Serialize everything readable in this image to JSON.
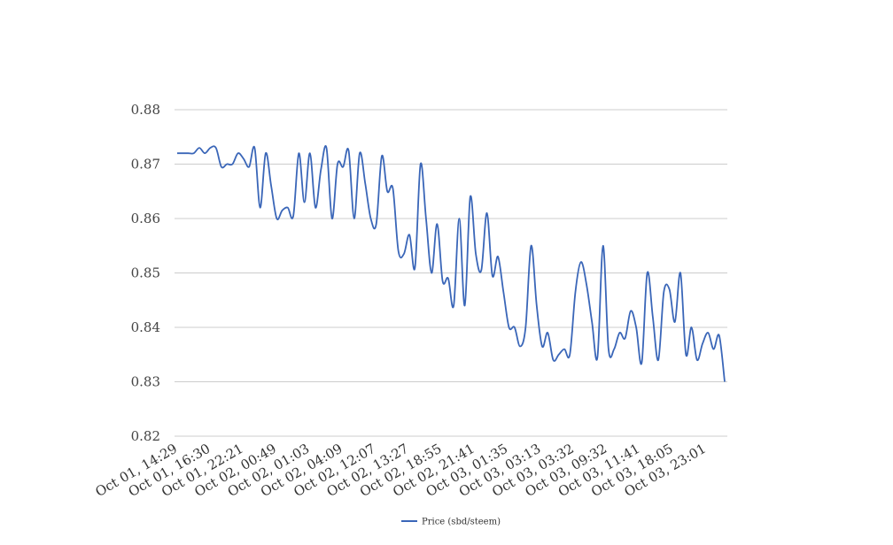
{
  "chart_data": {
    "type": "line",
    "title": "",
    "xlabel": "",
    "ylabel": "",
    "ylim": [
      0.82,
      0.88
    ],
    "yticks": [
      "0.82",
      "0.83",
      "0.84",
      "0.85",
      "0.86",
      "0.87",
      "0.88"
    ],
    "grid": true,
    "legend_position": "bottom-center",
    "x_tick_labels": [
      "Oct 01, 14:29",
      "Oct 01, 16:30",
      "Oct 01, 22:21",
      "Oct 02, 00:49",
      "Oct 02, 01:03",
      "Oct 02, 04:09",
      "Oct 02, 12:07",
      "Oct 02, 13:27",
      "Oct 02, 18:55",
      "Oct 02, 21:41",
      "Oct 03, 01:35",
      "Oct 03, 03:13",
      "Oct 03, 03:32",
      "Oct 03, 09:32",
      "Oct 03, 11:41",
      "Oct 03, 18:05",
      "Oct 03, 23:01"
    ],
    "series": [
      {
        "name": "Price (sbd/steem)",
        "color": "#3a66b8",
        "values": [
          0.872,
          0.872,
          0.872,
          0.872,
          0.873,
          0.872,
          0.873,
          0.873,
          0.8695,
          0.87,
          0.87,
          0.872,
          0.871,
          0.8695,
          0.873,
          0.862,
          0.872,
          0.866,
          0.86,
          0.8615,
          0.862,
          0.8605,
          0.872,
          0.863,
          0.872,
          0.862,
          0.869,
          0.873,
          0.86,
          0.87,
          0.8695,
          0.8725,
          0.86,
          0.872,
          0.8665,
          0.86,
          0.859,
          0.8715,
          0.865,
          0.8655,
          0.854,
          0.8535,
          0.857,
          0.851,
          0.87,
          0.86,
          0.85,
          0.859,
          0.8485,
          0.849,
          0.844,
          0.86,
          0.844,
          0.864,
          0.8535,
          0.8505,
          0.861,
          0.8495,
          0.853,
          0.8465,
          0.84,
          0.84,
          0.8365,
          0.84,
          0.855,
          0.844,
          0.8365,
          0.839,
          0.834,
          0.835,
          0.836,
          0.835,
          0.8465,
          0.852,
          0.848,
          0.841,
          0.8345,
          0.855,
          0.836,
          0.836,
          0.839,
          0.838,
          0.843,
          0.84,
          0.8335,
          0.85,
          0.842,
          0.834,
          0.8465,
          0.847,
          0.841,
          0.85,
          0.835,
          0.84,
          0.834,
          0.837,
          0.839,
          0.836,
          0.8385,
          0.83
        ]
      }
    ]
  }
}
